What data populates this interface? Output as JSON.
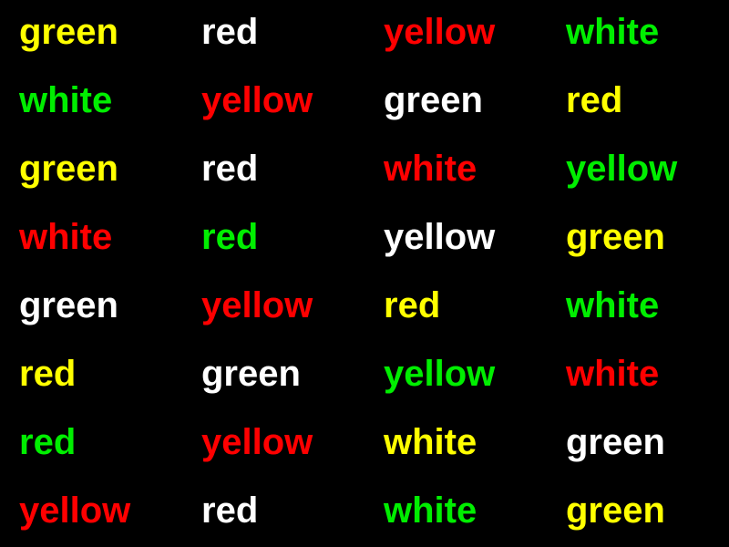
{
  "colors": {
    "background": "#000000",
    "green": "#00ee00",
    "red": "#ff0000",
    "yellow": "#ffff00",
    "white": "#ffffff"
  },
  "rows": [
    [
      {
        "word": "green",
        "color": "yellow"
      },
      {
        "word": "red",
        "color": "white"
      },
      {
        "word": "yellow",
        "color": "red"
      },
      {
        "word": "white",
        "color": "green"
      }
    ],
    [
      {
        "word": "white",
        "color": "green"
      },
      {
        "word": "yellow",
        "color": "red"
      },
      {
        "word": "green",
        "color": "white"
      },
      {
        "word": "red",
        "color": "yellow"
      }
    ],
    [
      {
        "word": "green",
        "color": "yellow"
      },
      {
        "word": "red",
        "color": "white"
      },
      {
        "word": "white",
        "color": "red"
      },
      {
        "word": "yellow",
        "color": "green"
      }
    ],
    [
      {
        "word": "white",
        "color": "red"
      },
      {
        "word": "red",
        "color": "green"
      },
      {
        "word": "yellow",
        "color": "white"
      },
      {
        "word": "green",
        "color": "yellow"
      }
    ],
    [
      {
        "word": "green",
        "color": "white"
      },
      {
        "word": "yellow",
        "color": "red"
      },
      {
        "word": "red",
        "color": "yellow"
      },
      {
        "word": "white",
        "color": "green"
      }
    ],
    [
      {
        "word": "red",
        "color": "yellow"
      },
      {
        "word": "green",
        "color": "white"
      },
      {
        "word": "yellow",
        "color": "green"
      },
      {
        "word": "white",
        "color": "red"
      }
    ],
    [
      {
        "word": "red",
        "color": "green"
      },
      {
        "word": "yellow",
        "color": "red"
      },
      {
        "word": "white",
        "color": "yellow"
      },
      {
        "word": "green",
        "color": "white"
      }
    ],
    [
      {
        "word": "yellow",
        "color": "red"
      },
      {
        "word": "red",
        "color": "white"
      },
      {
        "word": "white",
        "color": "green"
      },
      {
        "word": "green",
        "color": "yellow"
      }
    ]
  ]
}
